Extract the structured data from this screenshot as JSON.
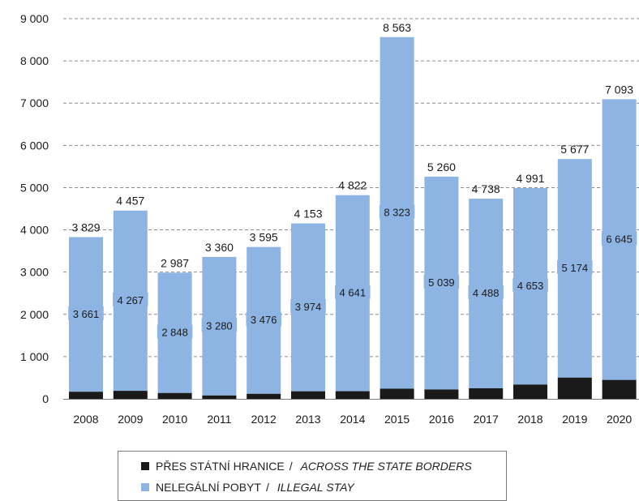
{
  "chart_data": {
    "type": "bar",
    "stacked": true,
    "categories": [
      "2008",
      "2009",
      "2010",
      "2011",
      "2012",
      "2013",
      "2014",
      "2015",
      "2016",
      "2017",
      "2018",
      "2019",
      "2020"
    ],
    "totals": [
      3829,
      4457,
      2987,
      3360,
      3595,
      4153,
      4822,
      8563,
      5260,
      4738,
      4991,
      5677,
      7093
    ],
    "total_labels": [
      "3 829",
      "4 457",
      "2 987",
      "3 360",
      "3 595",
      "4 153",
      "4 822",
      "8 563",
      "5 260",
      "4 738",
      "4 991",
      "5 677",
      "7 093"
    ],
    "series": [
      {
        "name_cz": "PŘES STÁTNÍ HRANICE",
        "name_en": "ACROSS THE STATE BORDERS",
        "color": "#1a1a1a",
        "values": [
          168,
          190,
          139,
          80,
          119,
          179,
          181,
          240,
          221,
          250,
          338,
          503,
          448
        ]
      },
      {
        "name_cz": "NELEGÁLNÍ POBYT",
        "name_en": "ILLEGAL STAY",
        "color": "#8db4e2",
        "values": [
          3661,
          4267,
          2848,
          3280,
          3476,
          3974,
          4641,
          8323,
          5039,
          4488,
          4653,
          5174,
          6645
        ],
        "labels": [
          "3 661",
          "4 267",
          "2 848",
          "3 280",
          "3 476",
          "3 974",
          "4 641",
          "8 323",
          "5 039",
          "4 488",
          "4 653",
          "5 174",
          "6 645"
        ]
      }
    ],
    "ylim": [
      0,
      9000
    ],
    "yticks": [
      0,
      1000,
      2000,
      3000,
      4000,
      5000,
      6000,
      7000,
      8000,
      9000
    ],
    "ytick_labels": [
      "0",
      "1 000",
      "2 000",
      "3 000",
      "4 000",
      "5 000",
      "6 000",
      "7 000",
      "8 000",
      "9 000"
    ],
    "grid": true,
    "legend_position": "bottom"
  },
  "legend": {
    "separator": "/",
    "items": [
      {
        "label_cz": "PŘES STÁTNÍ HRANICE",
        "label_en": "ACROSS THE STATE BORDERS",
        "color": "#1a1a1a"
      },
      {
        "label_cz": "NELEGÁLNÍ POBYT",
        "label_en": "ILLEGAL STAY",
        "color": "#8db4e2"
      }
    ]
  }
}
